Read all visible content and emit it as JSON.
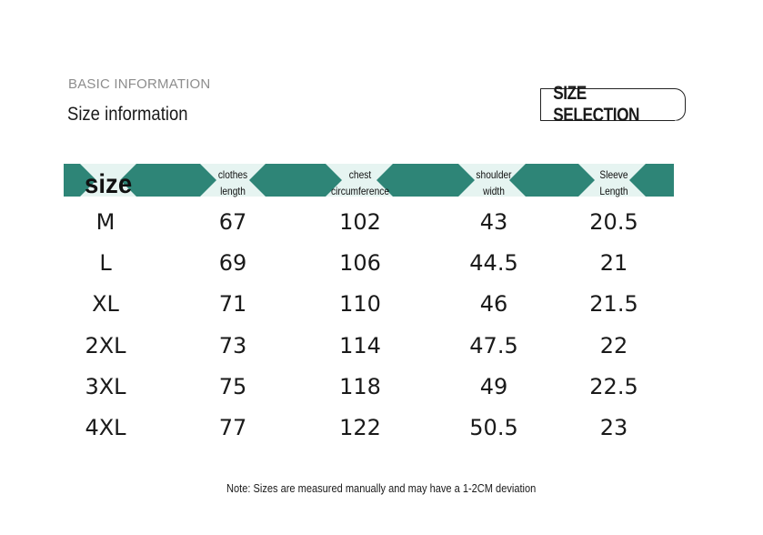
{
  "header": {
    "basic_info": "BASIC INFORMATION",
    "size_info": "Size information",
    "size_selection": "SIZE SELECTION"
  },
  "table": {
    "band_color": "#2e8577",
    "columns": [
      {
        "line1": "size",
        "line2": ""
      },
      {
        "line1": "clothes",
        "line2": "length"
      },
      {
        "line1": "chest",
        "line2": "circumference"
      },
      {
        "line1": "shoulder",
        "line2": "width"
      },
      {
        "line1": "Sleeve",
        "line2": "Length"
      }
    ],
    "rows": [
      [
        "M",
        "67",
        "102",
        "43",
        "20.5"
      ],
      [
        "L",
        "69",
        "106",
        "44.5",
        "21"
      ],
      [
        "XL",
        "71",
        "110",
        "46",
        "21.5"
      ],
      [
        "2XL",
        "73",
        "114",
        "47.5",
        "22"
      ],
      [
        "3XL",
        "75",
        "118",
        "49",
        "22.5"
      ],
      [
        "4XL",
        "77",
        "122",
        "50.5",
        "23"
      ]
    ]
  },
  "note": "Note: Sizes are measured manually and may have a 1-2CM deviation"
}
